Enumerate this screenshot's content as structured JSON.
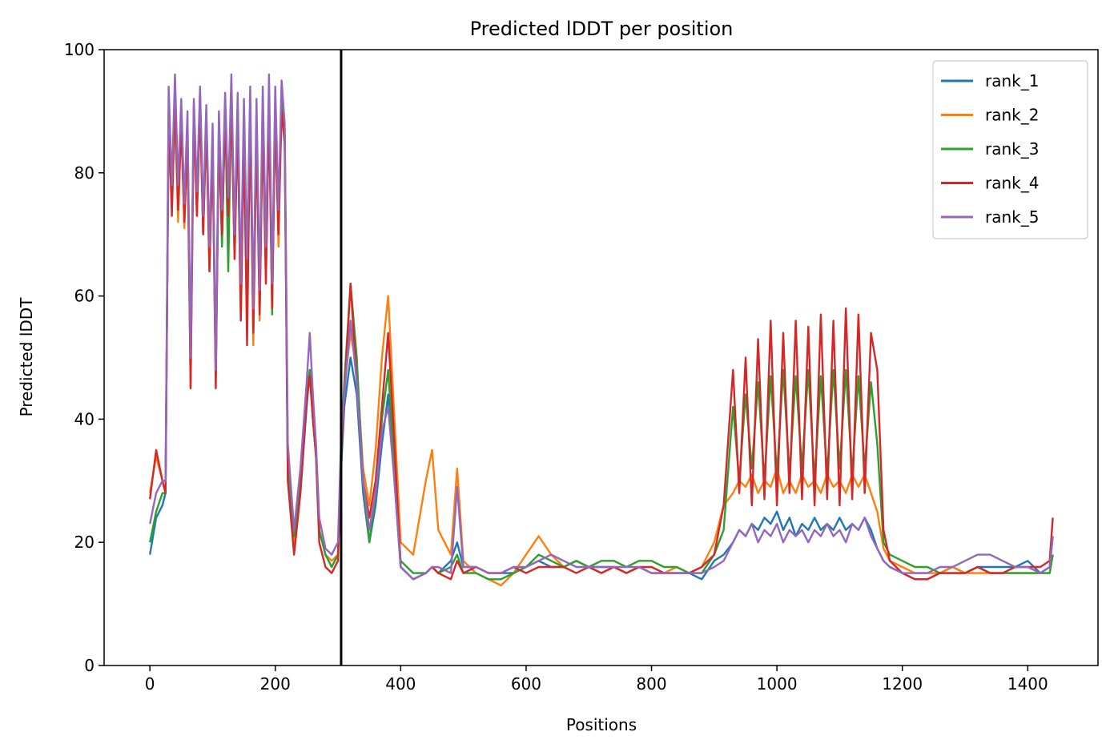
{
  "chart_data": {
    "type": "line",
    "title": "Predicted lDDT per position",
    "xlabel": "Positions",
    "ylabel": "Predicted lDDT",
    "xlim": [
      -73,
      1512
    ],
    "ylim": [
      0,
      100
    ],
    "xticks": [
      0,
      200,
      400,
      600,
      800,
      1000,
      1200,
      1400
    ],
    "yticks": [
      0,
      20,
      40,
      60,
      80,
      100
    ],
    "grid": false,
    "legend": "top-right",
    "vline": 305,
    "colors": {
      "rank_1": "#1f77b4",
      "rank_2": "#ff7f0e",
      "rank_3": "#2ca02c",
      "rank_4": "#d62728",
      "rank_5": "#9467bd",
      "vline": "#000000"
    },
    "x": [
      0,
      10,
      20,
      25,
      30,
      35,
      40,
      45,
      50,
      55,
      60,
      65,
      70,
      75,
      80,
      85,
      90,
      95,
      100,
      105,
      110,
      115,
      120,
      125,
      130,
      135,
      140,
      145,
      150,
      155,
      160,
      165,
      170,
      175,
      180,
      185,
      190,
      195,
      200,
      205,
      210,
      215,
      220,
      230,
      240,
      250,
      255,
      260,
      265,
      270,
      280,
      290,
      300,
      305,
      310,
      320,
      330,
      340,
      350,
      360,
      370,
      380,
      390,
      400,
      420,
      440,
      450,
      460,
      480,
      490,
      500,
      520,
      540,
      560,
      580,
      600,
      620,
      640,
      660,
      680,
      700,
      720,
      740,
      760,
      780,
      800,
      820,
      840,
      860,
      880,
      900,
      915,
      930,
      940,
      950,
      960,
      970,
      980,
      990,
      1000,
      1010,
      1020,
      1030,
      1040,
      1050,
      1060,
      1070,
      1080,
      1090,
      1100,
      1110,
      1120,
      1130,
      1140,
      1150,
      1160,
      1170,
      1180,
      1200,
      1220,
      1240,
      1260,
      1280,
      1300,
      1320,
      1340,
      1360,
      1380,
      1400,
      1420,
      1435,
      1440
    ],
    "series": [
      {
        "name": "rank_1",
        "values": [
          18,
          24,
          26,
          28,
          88,
          75,
          92,
          74,
          89,
          72,
          86,
          48,
          90,
          74,
          92,
          70,
          89,
          66,
          85,
          47,
          87,
          70,
          90,
          72,
          93,
          68,
          90,
          58,
          88,
          62,
          91,
          54,
          88,
          58,
          90,
          64,
          92,
          60,
          91,
          70,
          92,
          86,
          30,
          20,
          28,
          42,
          48,
          40,
          35,
          22,
          18,
          16,
          18,
          32,
          42,
          50,
          44,
          28,
          20,
          26,
          36,
          44,
          30,
          16,
          14,
          15,
          16,
          15,
          17,
          20,
          16,
          16,
          15,
          15,
          15,
          16,
          17,
          16,
          16,
          17,
          16,
          16,
          16,
          15,
          16,
          15,
          15,
          15,
          15,
          14,
          17,
          18,
          20,
          22,
          21,
          23,
          22,
          24,
          23,
          25,
          22,
          24,
          21,
          23,
          22,
          24,
          22,
          23,
          22,
          24,
          22,
          23,
          22,
          24,
          22,
          19,
          17,
          16,
          15,
          14,
          14,
          15,
          16,
          15,
          16,
          16,
          16,
          16,
          17,
          15,
          16,
          21
        ]
      },
      {
        "name": "rank_2",
        "values": [
          28,
          34,
          30,
          30,
          88,
          74,
          90,
          72,
          88,
          71,
          85,
          45,
          89,
          73,
          91,
          70,
          88,
          64,
          84,
          46,
          86,
          69,
          89,
          74,
          92,
          66,
          89,
          56,
          87,
          60,
          90,
          52,
          87,
          56,
          89,
          62,
          91,
          58,
          90,
          68,
          91,
          84,
          32,
          20,
          30,
          44,
          48,
          40,
          34,
          22,
          18,
          17,
          18,
          35,
          45,
          54,
          48,
          32,
          26,
          35,
          50,
          60,
          40,
          20,
          18,
          30,
          35,
          22,
          18,
          32,
          17,
          15,
          14,
          13,
          15,
          18,
          21,
          18,
          16,
          17,
          16,
          15,
          16,
          15,
          16,
          15,
          15,
          16,
          15,
          16,
          20,
          26,
          28,
          30,
          29,
          31,
          28,
          30,
          29,
          32,
          28,
          30,
          28,
          31,
          29,
          30,
          28,
          31,
          29,
          30,
          28,
          31,
          29,
          31,
          28,
          25,
          19,
          17,
          16,
          15,
          15,
          15,
          16,
          15,
          15,
          15,
          15,
          15,
          15,
          15,
          15,
          18
        ]
      },
      {
        "name": "rank_3",
        "values": [
          20,
          25,
          28,
          28,
          90,
          76,
          93,
          75,
          90,
          73,
          88,
          48,
          91,
          75,
          93,
          71,
          90,
          65,
          86,
          47,
          88,
          68,
          91,
          64,
          93,
          67,
          91,
          60,
          89,
          63,
          92,
          55,
          89,
          59,
          91,
          65,
          93,
          57,
          92,
          71,
          93,
          87,
          33,
          21,
          30,
          44,
          48,
          40,
          34,
          22,
          18,
          16,
          18,
          36,
          46,
          62,
          50,
          30,
          20,
          28,
          40,
          48,
          32,
          17,
          15,
          15,
          16,
          15,
          16,
          18,
          15,
          15,
          14,
          14,
          15,
          16,
          18,
          17,
          16,
          17,
          16,
          17,
          17,
          16,
          17,
          17,
          16,
          16,
          15,
          15,
          18,
          22,
          42,
          30,
          44,
          32,
          46,
          30,
          47,
          31,
          48,
          31,
          47,
          32,
          48,
          30,
          47,
          31,
          48,
          32,
          48,
          31,
          47,
          32,
          46,
          36,
          20,
          18,
          17,
          16,
          16,
          15,
          15,
          15,
          16,
          15,
          15,
          15,
          15,
          15,
          15,
          18
        ]
      },
      {
        "name": "rank_4",
        "values": [
          27,
          35,
          30,
          28,
          90,
          73,
          92,
          74,
          88,
          72,
          86,
          45,
          90,
          73,
          91,
          70,
          88,
          64,
          84,
          45,
          86,
          70,
          89,
          73,
          91,
          66,
          88,
          56,
          86,
          52,
          89,
          54,
          86,
          57,
          88,
          62,
          90,
          58,
          89,
          70,
          90,
          85,
          30,
          18,
          28,
          43,
          47,
          40,
          34,
          20,
          16,
          15,
          17,
          34,
          44,
          62,
          46,
          30,
          24,
          30,
          42,
          54,
          36,
          16,
          14,
          15,
          16,
          15,
          14,
          17,
          15,
          16,
          15,
          15,
          16,
          15,
          16,
          16,
          16,
          15,
          16,
          15,
          16,
          15,
          16,
          16,
          15,
          15,
          15,
          16,
          18,
          26,
          48,
          28,
          50,
          26,
          53,
          27,
          56,
          26,
          54,
          28,
          56,
          27,
          55,
          26,
          57,
          27,
          56,
          26,
          58,
          27,
          57,
          28,
          54,
          48,
          22,
          17,
          15,
          14,
          14,
          15,
          15,
          15,
          16,
          15,
          15,
          16,
          16,
          16,
          17,
          24
        ]
      },
      {
        "name": "rank_5",
        "values": [
          23,
          28,
          30,
          30,
          94,
          78,
          96,
          78,
          92,
          75,
          90,
          50,
          92,
          77,
          94,
          73,
          91,
          68,
          88,
          48,
          90,
          74,
          93,
          76,
          96,
          70,
          93,
          62,
          92,
          66,
          94,
          58,
          92,
          61,
          94,
          68,
          96,
          62,
          94,
          74,
          95,
          88,
          36,
          22,
          32,
          46,
          54,
          44,
          36,
          24,
          19,
          18,
          20,
          37,
          44,
          56,
          46,
          30,
          22,
          28,
          38,
          42,
          30,
          16,
          14,
          15,
          16,
          16,
          15,
          29,
          16,
          16,
          15,
          15,
          16,
          16,
          17,
          18,
          17,
          16,
          16,
          16,
          16,
          16,
          16,
          15,
          15,
          15,
          15,
          15,
          16,
          17,
          20,
          22,
          21,
          23,
          20,
          22,
          21,
          23,
          20,
          22,
          21,
          22,
          20,
          22,
          21,
          23,
          21,
          22,
          20,
          23,
          22,
          24,
          21,
          19,
          17,
          16,
          15,
          15,
          15,
          16,
          16,
          17,
          18,
          18,
          17,
          16,
          16,
          15,
          16,
          21
        ]
      }
    ]
  }
}
